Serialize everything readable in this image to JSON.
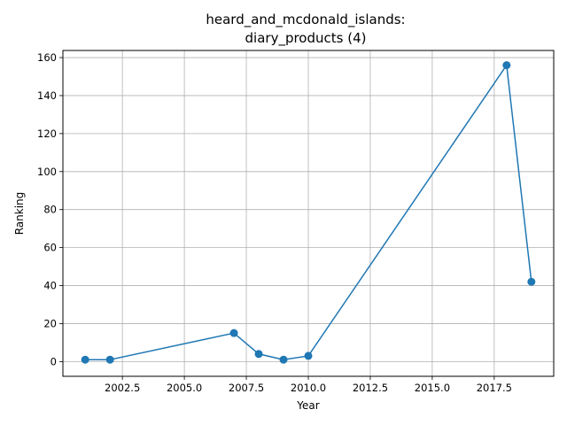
{
  "chart_data": {
    "type": "line",
    "title_lines": [
      "heard_and_mcdonald_islands:",
      "diary_products (4)"
    ],
    "xlabel": "Year",
    "ylabel": "Ranking",
    "xlim": [
      2000.1,
      2019.9
    ],
    "ylim": [
      -7.75,
      163.75
    ],
    "xticks": [
      2002.5,
      2005.0,
      2007.5,
      2010.0,
      2012.5,
      2015.0,
      2017.5
    ],
    "xtick_labels": [
      "2002.5",
      "2005.0",
      "2007.5",
      "2010.0",
      "2012.5",
      "2015.0",
      "2017.5"
    ],
    "yticks": [
      0,
      20,
      40,
      60,
      80,
      100,
      120,
      140,
      160
    ],
    "ytick_labels": [
      "0",
      "20",
      "40",
      "60",
      "80",
      "100",
      "120",
      "140",
      "160"
    ],
    "grid": true,
    "series": [
      {
        "color": "#1f77b4",
        "marker": "circle",
        "x": [
          2001,
          2002,
          2007,
          2008,
          2009,
          2010,
          2018,
          2019
        ],
        "y": [
          1,
          1,
          15,
          4,
          1,
          3,
          156,
          42
        ]
      }
    ]
  }
}
